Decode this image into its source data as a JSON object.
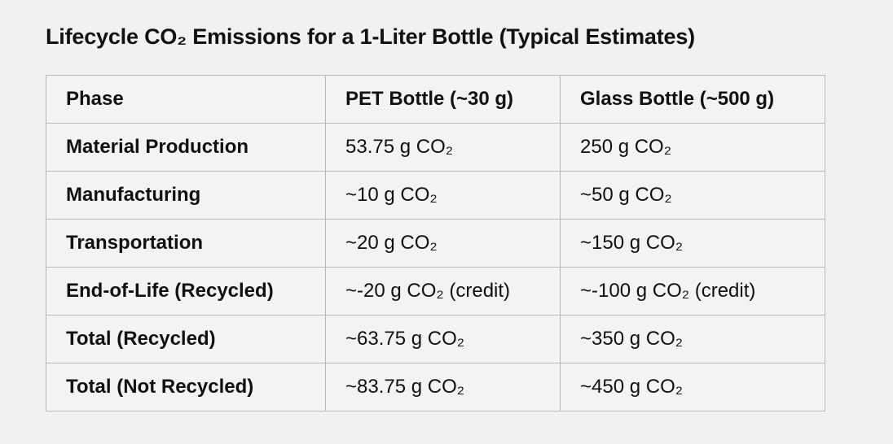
{
  "title": "Lifecycle CO₂ Emissions for a 1-Liter Bottle (Typical Estimates)",
  "table": {
    "headers": [
      "Phase",
      "PET Bottle (~30 g)",
      "Glass Bottle (~500 g)"
    ],
    "rows": [
      [
        "Material Production",
        "53.75 g CO₂",
        "250 g CO₂"
      ],
      [
        "Manufacturing",
        "~10 g CO₂",
        "~50 g CO₂"
      ],
      [
        "Transportation",
        "~20 g CO₂",
        "~150 g CO₂"
      ],
      [
        "End-of-Life (Recycled)",
        "~-20 g CO₂ (credit)",
        "~-100 g CO₂ (credit)"
      ],
      [
        "Total (Recycled)",
        "~63.75 g CO₂",
        "~350 g CO₂"
      ],
      [
        "Total (Not Recycled)",
        "~83.75 g CO₂",
        "~450 g CO₂"
      ]
    ]
  }
}
